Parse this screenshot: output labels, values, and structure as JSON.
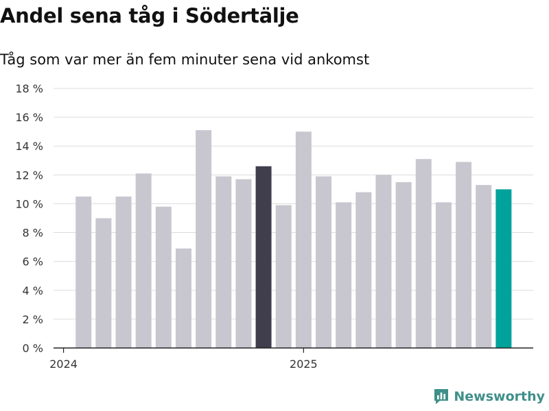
{
  "header": {
    "title": "Andel sena tåg i Södertälje",
    "subtitle": "Tåg som var mer än fem minuter sena vid ankomst"
  },
  "brand": {
    "name": "Newsworthy",
    "icon": "bar-chart-logo-icon"
  },
  "colors": {
    "default_bar": "#c8c7cf",
    "highlight_dark": "#403e4c",
    "highlight_teal": "#00a39b",
    "brand": "#3f8f8a"
  },
  "chart_data": {
    "type": "bar",
    "title": "Andel sena tåg i Södertälje",
    "subtitle": "Tåg som var mer än fem minuter sena vid ankomst",
    "xlabel": "",
    "ylabel": "",
    "unit": "%",
    "ylim": [
      0,
      18
    ],
    "y_ticks": [
      0,
      2,
      4,
      6,
      8,
      10,
      12,
      14,
      16,
      18
    ],
    "y_tick_labels": [
      "0 %",
      "2 %",
      "4 %",
      "6 %",
      "8 %",
      "10 %",
      "12 %",
      "14 %",
      "16 %",
      "18 %"
    ],
    "x_tick_labels": [
      {
        "label": "2024",
        "index": 0
      },
      {
        "label": "2025",
        "index": 12
      }
    ],
    "grid": true,
    "categories": [
      "2024-01",
      "2024-02",
      "2024-03",
      "2024-04",
      "2024-05",
      "2024-06",
      "2024-07",
      "2024-08",
      "2024-09",
      "2024-10",
      "2024-11",
      "2024-12",
      "2025-01",
      "2025-02",
      "2025-03",
      "2025-04",
      "2025-05",
      "2025-06",
      "2025-07",
      "2025-08",
      "2025-09",
      "2025-10",
      "2025-11",
      "2025-12"
    ],
    "values": [
      0,
      10.5,
      9.0,
      10.5,
      12.1,
      9.8,
      6.9,
      15.1,
      11.9,
      11.7,
      12.6,
      9.9,
      15.0,
      11.9,
      10.1,
      10.8,
      12.0,
      11.5,
      13.1,
      10.1,
      12.9,
      11.3,
      11.0,
      0
    ],
    "highlight": {
      "dark": [
        10
      ],
      "teal": [
        22
      ]
    }
  }
}
